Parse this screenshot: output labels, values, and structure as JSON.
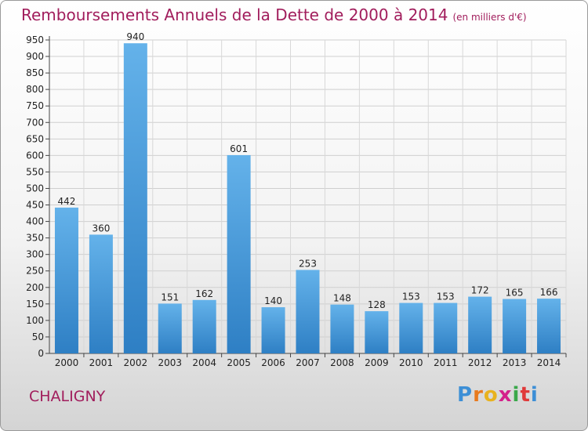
{
  "title": "Remboursements Annuels de la Dette de 2000 à 2014",
  "unit_note": "(en milliers d'€)",
  "place": "CHALIGNY",
  "logo": "Proxiti",
  "colors": {
    "title": "#a11d5c",
    "bar_top": "#64b2ea",
    "bar_bottom": "#2e7fc4"
  },
  "chart_data": {
    "type": "bar",
    "categories": [
      "2000",
      "2001",
      "2002",
      "2003",
      "2004",
      "2005",
      "2006",
      "2007",
      "2008",
      "2009",
      "2010",
      "2011",
      "2012",
      "2013",
      "2014"
    ],
    "values": [
      442,
      360,
      940,
      151,
      162,
      601,
      140,
      253,
      148,
      128,
      153,
      153,
      172,
      165,
      166
    ],
    "title": "Remboursements Annuels de la Dette de 2000 à 2014",
    "xlabel": "",
    "ylabel": "",
    "ylim": [
      0,
      950
    ],
    "yticks": [
      0,
      50,
      100,
      150,
      200,
      250,
      300,
      350,
      400,
      450,
      500,
      550,
      600,
      650,
      700,
      750,
      800,
      850,
      900,
      950
    ],
    "grid": true,
    "legend": "none"
  }
}
